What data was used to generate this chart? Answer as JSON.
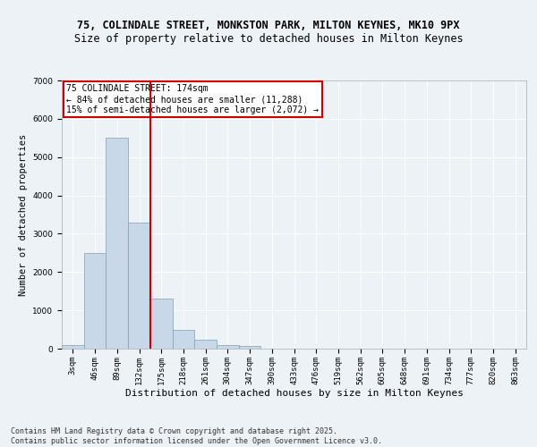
{
  "title_line1": "75, COLINDALE STREET, MONKSTON PARK, MILTON KEYNES, MK10 9PX",
  "title_line2": "Size of property relative to detached houses in Milton Keynes",
  "xlabel": "Distribution of detached houses by size in Milton Keynes",
  "ylabel": "Number of detached properties",
  "categories": [
    "3sqm",
    "46sqm",
    "89sqm",
    "132sqm",
    "175sqm",
    "218sqm",
    "261sqm",
    "304sqm",
    "347sqm",
    "390sqm",
    "433sqm",
    "476sqm",
    "519sqm",
    "562sqm",
    "605sqm",
    "648sqm",
    "691sqm",
    "734sqm",
    "777sqm",
    "820sqm",
    "863sqm"
  ],
  "values": [
    100,
    2500,
    5500,
    3300,
    1300,
    500,
    230,
    100,
    60,
    0,
    0,
    0,
    0,
    0,
    0,
    0,
    0,
    0,
    0,
    0,
    0
  ],
  "bar_color": "#c8d8e8",
  "bar_edge_color": "#7aa0bb",
  "vline_x_index": 3.5,
  "vline_color": "#cc0000",
  "annotation_text": "75 COLINDALE STREET: 174sqm\n← 84% of detached houses are smaller (11,288)\n15% of semi-detached houses are larger (2,072) →",
  "annotation_box_color": "#cc0000",
  "ylim": [
    0,
    7000
  ],
  "yticks": [
    0,
    1000,
    2000,
    3000,
    4000,
    5000,
    6000,
    7000
  ],
  "bg_color": "#edf2f7",
  "grid_color": "#ffffff",
  "footer_text": "Contains HM Land Registry data © Crown copyright and database right 2025.\nContains public sector information licensed under the Open Government Licence v3.0.",
  "title_fontsize": 8.5,
  "subtitle_fontsize": 8.5,
  "axis_label_fontsize": 7.5,
  "tick_fontsize": 6.5,
  "annotation_fontsize": 7,
  "footer_fontsize": 6
}
